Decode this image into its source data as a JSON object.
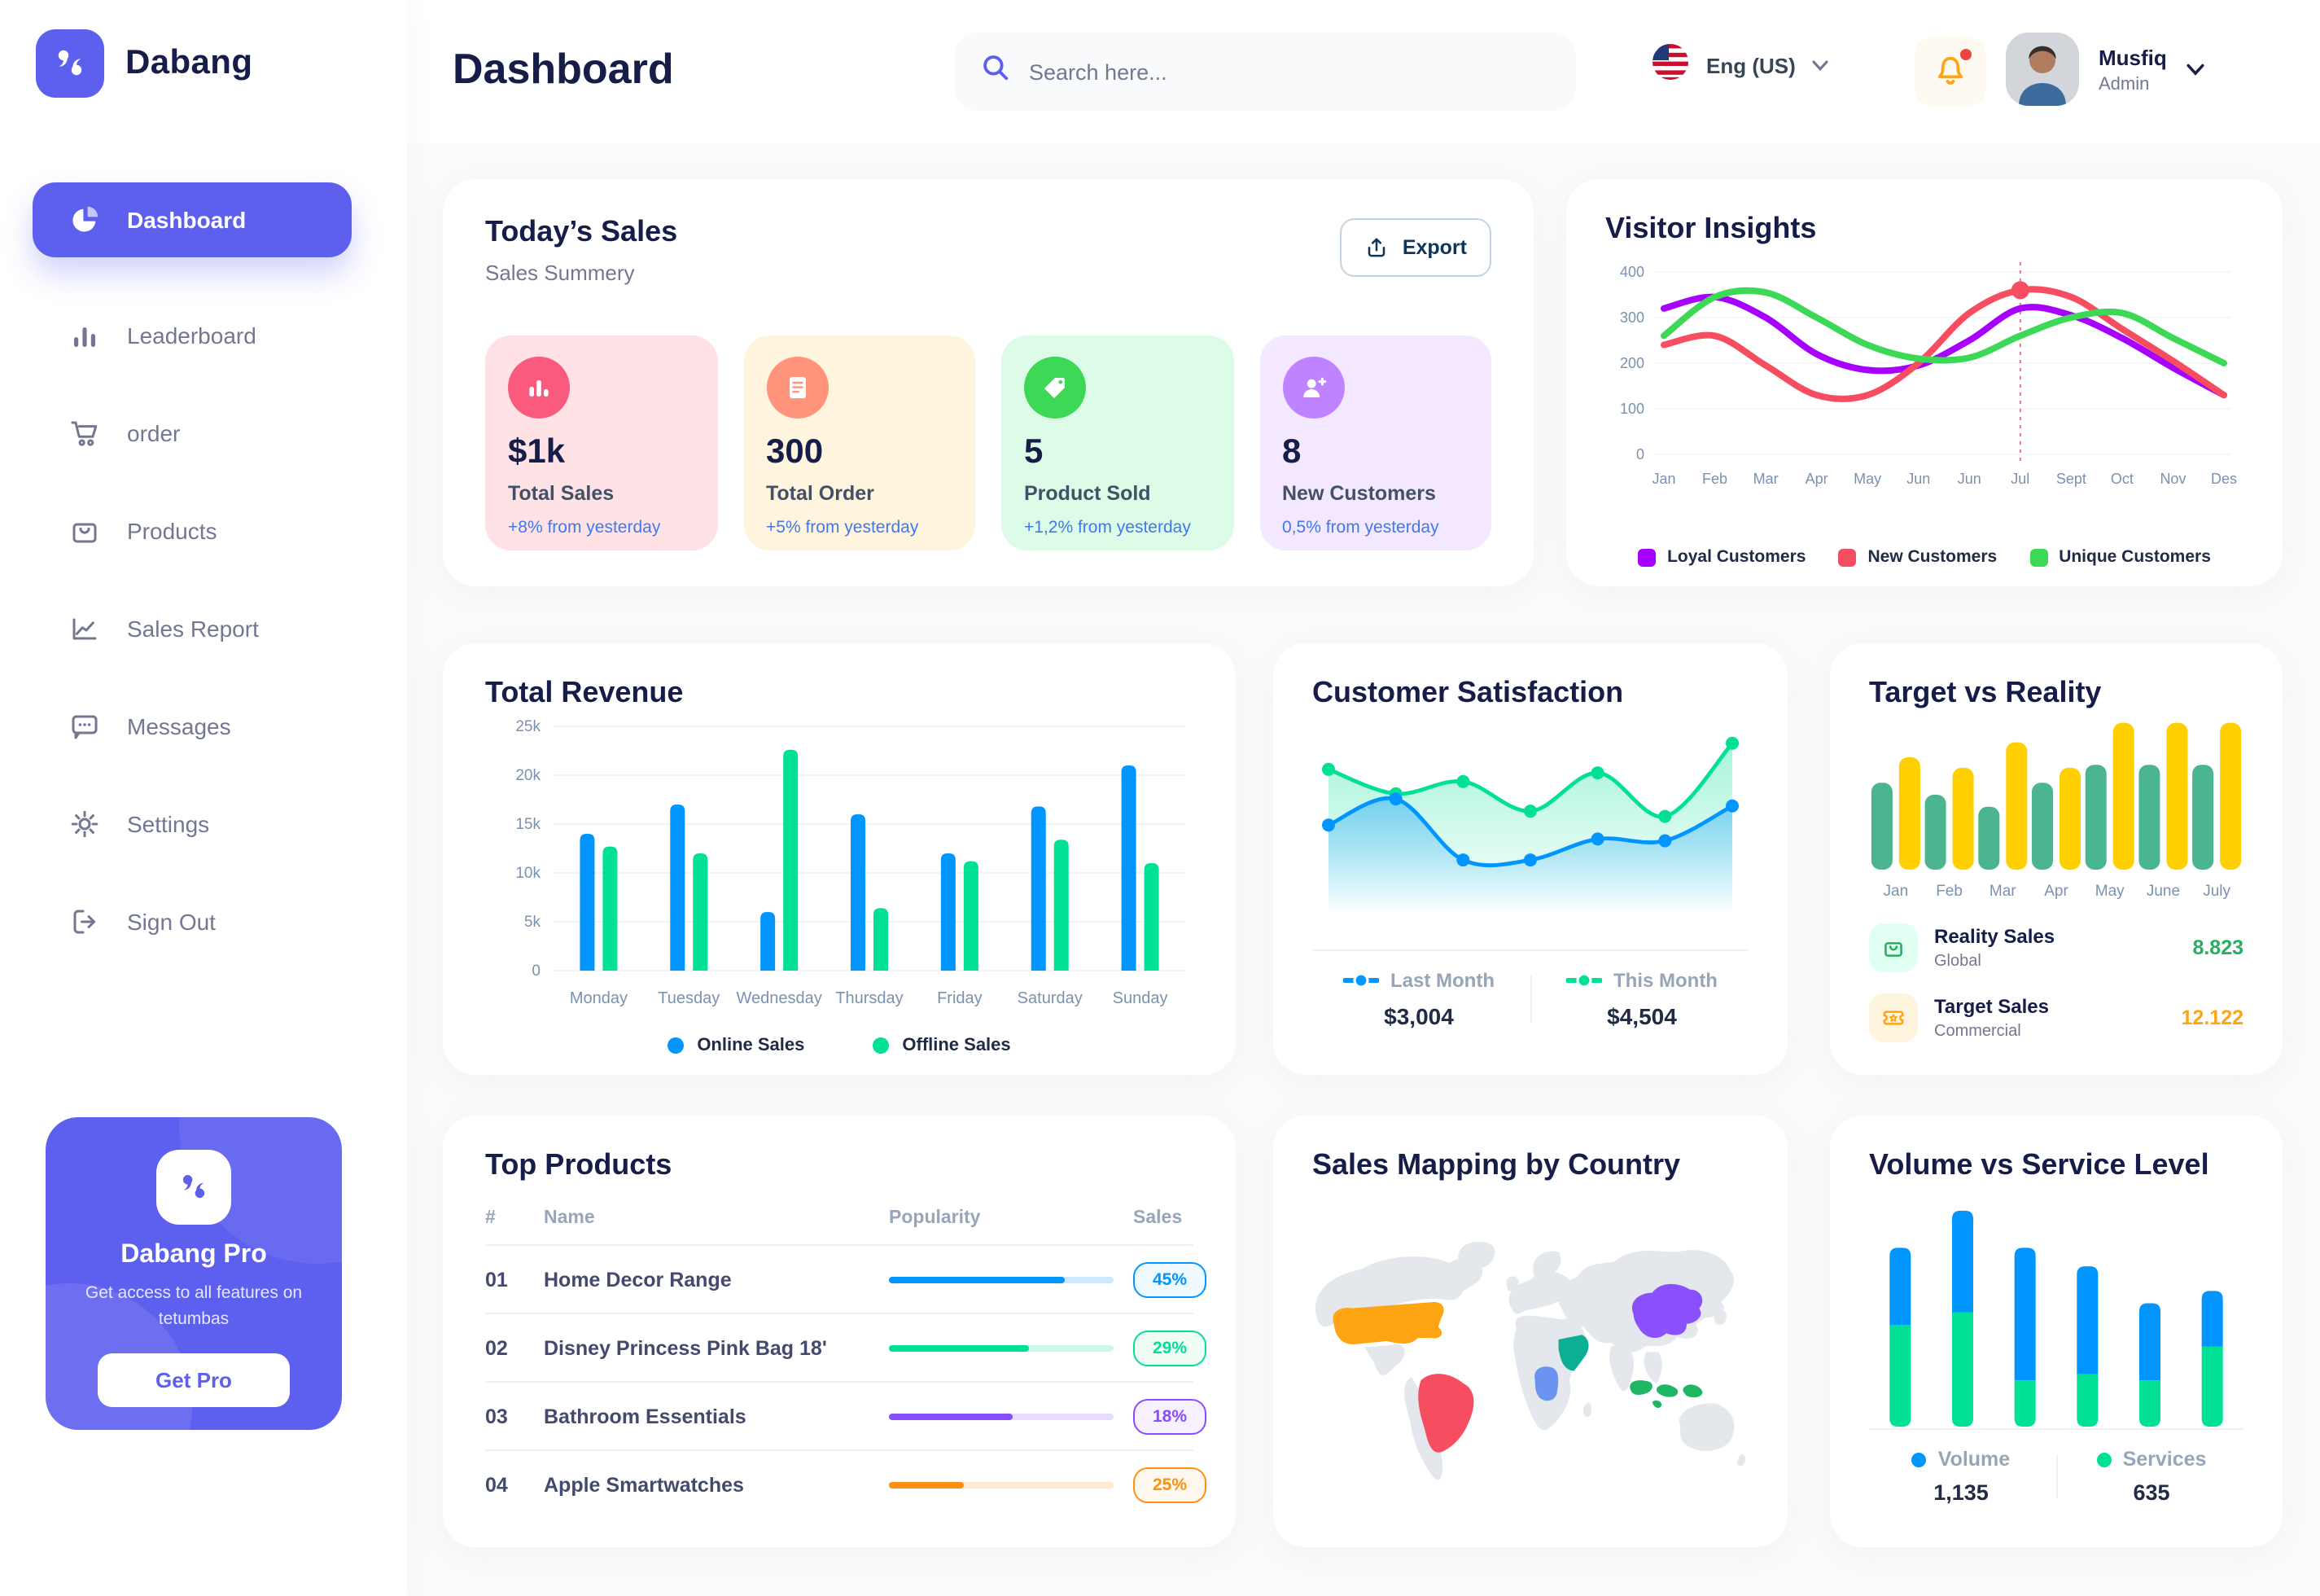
{
  "header": {
    "title": "Dashboard",
    "search_placeholder": "Search here...",
    "language": "Eng (US)",
    "user": {
      "name": "Musfiq",
      "role": "Admin"
    }
  },
  "sidebar": {
    "brand": "Dabang",
    "items": [
      {
        "label": "Dashboard",
        "icon": "dashboard",
        "active": true
      },
      {
        "label": "Leaderboard",
        "icon": "leaderboard",
        "active": false
      },
      {
        "label": "order",
        "icon": "order",
        "active": false
      },
      {
        "label": "Products",
        "icon": "products",
        "active": false
      },
      {
        "label": "Sales Report",
        "icon": "sales-report",
        "active": false
      },
      {
        "label": "Messages",
        "icon": "messages",
        "active": false
      },
      {
        "label": "Settings",
        "icon": "settings",
        "active": false
      },
      {
        "label": "Sign Out",
        "icon": "sign-out",
        "active": false
      }
    ],
    "pro": {
      "title": "Dabang Pro",
      "subtitle": "Get access to all features on tetumbas",
      "button": "Get Pro"
    }
  },
  "todays_sales": {
    "title": "Today’s Sales",
    "subtitle": "Sales Summery",
    "export_label": "Export",
    "cards": [
      {
        "value": "$1k",
        "label": "Total Sales",
        "delta": "+8% from yesterday",
        "bg": "#FFE2E5",
        "icon_bg": "#FA5A7D",
        "icon": "chart"
      },
      {
        "value": "300",
        "label": "Total Order",
        "delta": "+5% from yesterday",
        "bg": "#FFF4DE",
        "icon_bg": "#FF947A",
        "icon": "receipt"
      },
      {
        "value": "5",
        "label": "Product Sold",
        "delta": "+1,2% from yesterday",
        "bg": "#DCFCE7",
        "icon_bg": "#3CD856",
        "icon": "tag"
      },
      {
        "value": "8",
        "label": "New Customers",
        "delta": "0,5% from yesterday",
        "bg": "#F3E8FF",
        "icon_bg": "#BF83FF",
        "icon": "user-plus"
      }
    ]
  },
  "chart_data": [
    {
      "id": "visitor_insights",
      "type": "line",
      "title": "Visitor Insights",
      "x": [
        "Jan",
        "Feb",
        "Mar",
        "Apr",
        "May",
        "Jun",
        "Jun",
        "Jul",
        "Sept",
        "Oct",
        "Nov",
        "Des"
      ],
      "ylim": [
        0,
        400
      ],
      "yticks": [
        0,
        100,
        200,
        300,
        400
      ],
      "grid": true,
      "legend_position": "bottom",
      "series": [
        {
          "name": "Loyal Customers",
          "color": "#A700FF",
          "values": [
            320,
            345,
            300,
            220,
            185,
            195,
            250,
            320,
            305,
            255,
            190,
            130
          ]
        },
        {
          "name": "New Customers",
          "color": "#F64E60",
          "values": [
            240,
            260,
            195,
            130,
            130,
            200,
            310,
            360,
            345,
            275,
            205,
            130
          ]
        },
        {
          "name": "Unique Customers",
          "color": "#3CD856",
          "values": [
            260,
            345,
            355,
            300,
            240,
            210,
            212,
            260,
            300,
            310,
            255,
            200
          ]
        }
      ],
      "highlight": {
        "series": "New Customers",
        "index": 7,
        "marker_color": "#F64E60"
      }
    },
    {
      "id": "total_revenue",
      "type": "bar",
      "title": "Total Revenue",
      "categories": [
        "Monday",
        "Tuesday",
        "Wednesday",
        "Thursday",
        "Friday",
        "Saturday",
        "Sunday"
      ],
      "ytick_labels": [
        "0",
        "5k",
        "10k",
        "15k",
        "20k",
        "25k"
      ],
      "ymax": 25,
      "grid": true,
      "legend_position": "bottom",
      "series": [
        {
          "name": "Online Sales",
          "color": "#0095FF",
          "values": [
            14,
            17,
            6,
            16,
            12,
            16.8,
            21
          ]
        },
        {
          "name": "Offline Sales",
          "color": "#00E096",
          "values": [
            12.7,
            12,
            22.6,
            6.4,
            11.2,
            13.4,
            11
          ]
        }
      ]
    },
    {
      "id": "customer_satisfaction",
      "type": "area",
      "title": "Customer Satisfaction",
      "ylim": [
        0,
        100
      ],
      "series": [
        {
          "name": "Last Month",
          "color": "#0095FF",
          "total": "$3,004",
          "values": [
            48,
            63,
            28,
            28,
            40,
            39,
            59
          ]
        },
        {
          "name": "This Month",
          "color": "#00E096",
          "total": "$4,504",
          "values": [
            80,
            66,
            73,
            56,
            78,
            53,
            95
          ]
        }
      ]
    },
    {
      "id": "target_vs_reality",
      "type": "bar",
      "title": "Target vs Reality",
      "categories": [
        "Jan",
        "Feb",
        "Mar",
        "Apr",
        "May",
        "June",
        "July"
      ],
      "ymax": 100,
      "series": [
        {
          "name": "Reality Sales",
          "color": "#4AB58E",
          "values": [
            58,
            50,
            42,
            58,
            70,
            70,
            70
          ]
        },
        {
          "name": "Target Sales",
          "color": "#FFCF00",
          "values": [
            75,
            68,
            85,
            68,
            98,
            98,
            98
          ]
        }
      ],
      "legend": [
        {
          "name": "Reality Sales",
          "sub": "Global",
          "value": "8.823",
          "color": "#27AE60",
          "icon_bg": "#E2FFF3",
          "icon": "bag"
        },
        {
          "name": "Target Sales",
          "sub": "Commercial",
          "value": "12.122",
          "color": "#FFA412",
          "icon_bg": "#FFF4DE",
          "icon": "ticket"
        }
      ]
    },
    {
      "id": "volume_vs_service",
      "type": "stacked-bar",
      "title": "Volume vs Service Level",
      "ymax": 75,
      "series": [
        {
          "name": "Volume",
          "color": "#0095FF",
          "total": "1,135",
          "values": [
            25,
            33,
            43,
            35,
            25,
            18
          ]
        },
        {
          "name": "Services",
          "color": "#00E096",
          "total": "635",
          "values": [
            33,
            37,
            15,
            17,
            15,
            26
          ]
        }
      ]
    }
  ],
  "top_products": {
    "title": "Top Products",
    "columns": [
      "#",
      "Name",
      "Popularity",
      "Sales"
    ],
    "rows": [
      {
        "num": "01",
        "name": "Home Decor Range",
        "popularity": 78,
        "sales": "45%",
        "color": "#0095FF",
        "tint": "#F0F9FF"
      },
      {
        "num": "02",
        "name": "Disney Princess Pink Bag 18'",
        "popularity": 62,
        "sales": "29%",
        "color": "#00E096",
        "tint": "#F0FDF4"
      },
      {
        "num": "03",
        "name": "Bathroom Essentials",
        "popularity": 55,
        "sales": "18%",
        "color": "#884DFF",
        "tint": "#F6F0FF"
      },
      {
        "num": "04",
        "name": "Apple Smartwatches",
        "popularity": 33,
        "sales": "25%",
        "color": "#FF8F0D",
        "tint": "#FFF8EF"
      }
    ]
  },
  "sales_map": {
    "title": "Sales Mapping by Country",
    "land_color": "#E4E7EC",
    "countries": {
      "usa": "#FFA412",
      "brazil": "#F64E60",
      "saudi_arabia": "#0CAF92",
      "dr_congo": "#6B93F2",
      "china": "#8950FC",
      "indonesia": "#1EB564"
    }
  },
  "colors": {
    "primary": "#5D5FEF",
    "navy": "#151D48",
    "gray": "#737791",
    "delta_blue": "#4079ED"
  }
}
